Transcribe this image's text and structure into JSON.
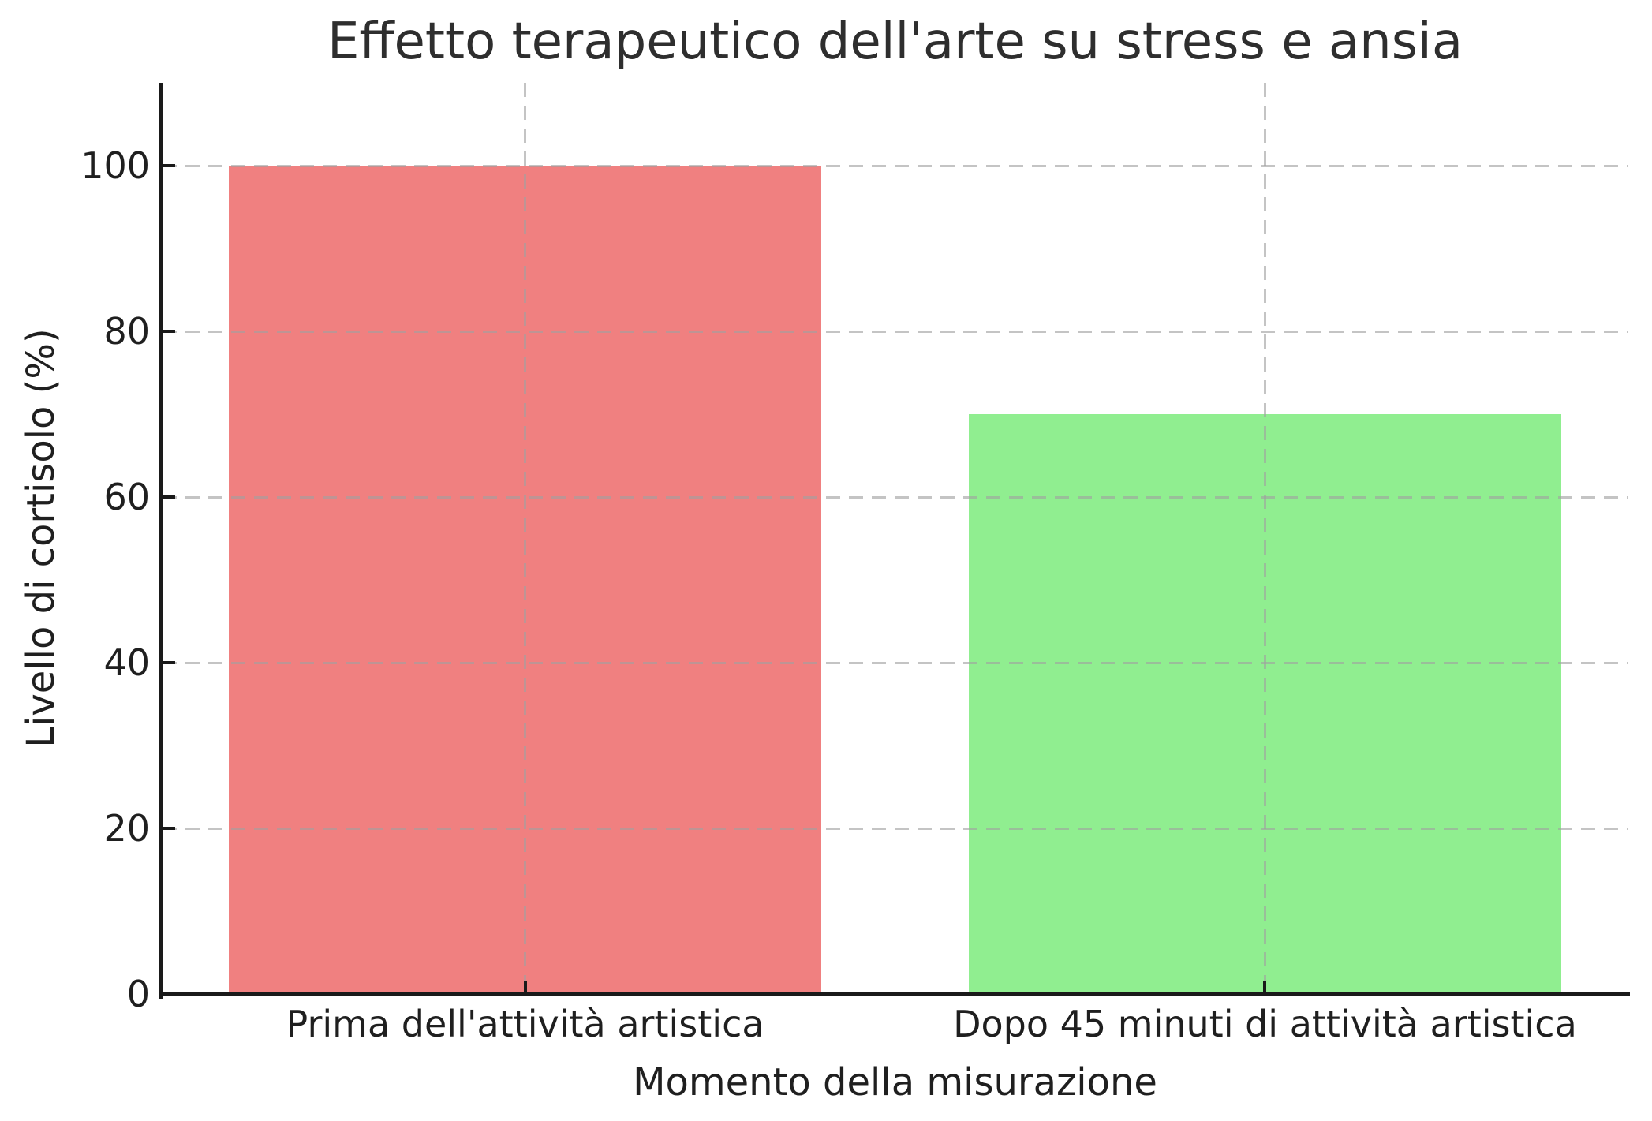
{
  "chart_data": {
    "type": "bar",
    "title": "Effetto terapeutico dell'arte su stress e ansia",
    "xlabel": "Momento della misurazione",
    "ylabel": "Livello di cortisolo (%)",
    "categories": [
      "Prima dell'attività artistica",
      "Dopo 45 minuti di attività artistica"
    ],
    "values": [
      100,
      70
    ],
    "bar_colors": [
      "#f08080",
      "#90ee90"
    ],
    "bar_width_fraction": 0.8,
    "ylim": [
      0,
      110
    ],
    "yticks": [
      0,
      20,
      40,
      60,
      80,
      100
    ],
    "grid": {
      "horizontal": true,
      "vertical": true,
      "style": "dashed",
      "color": "#c9c9c9"
    },
    "legend_position": "none",
    "axis_color": "#1a1a1a",
    "text_color": "#1f1f1f",
    "background_color": "#ffffff"
  }
}
